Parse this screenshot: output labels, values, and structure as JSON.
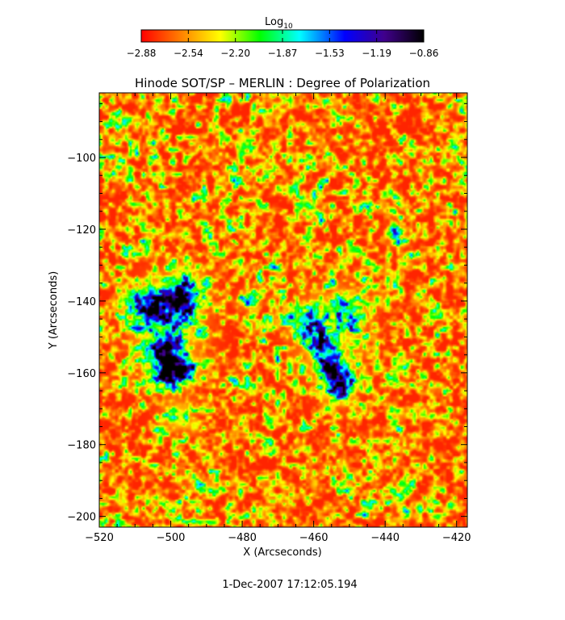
{
  "chart_data": {
    "type": "heatmap",
    "title": "Hinode SOT/SP – MERLIN : Degree of Polarization",
    "xlabel": "X (Arcseconds)",
    "ylabel": "Y (Arcseconds)",
    "xlim": [
      -520,
      -417
    ],
    "ylim": [
      -203,
      -82
    ],
    "x_ticks": [
      -520,
      -500,
      -480,
      -460,
      -440,
      -420
    ],
    "y_ticks": [
      -200,
      -180,
      -160,
      -140,
      -120,
      -100
    ],
    "colorbar": {
      "label_main": "Log",
      "label_sub": "10",
      "range": [
        -2.88,
        -0.86
      ],
      "ticks": [
        "−2.88",
        "−2.54",
        "−2.20",
        "−1.87",
        "−1.53",
        "−1.19",
        "−0.86"
      ],
      "colormap": [
        "#ff0000",
        "#ff8000",
        "#ffff00",
        "#00ff00",
        "#00ffff",
        "#0000ff",
        "#40008c",
        "#000000"
      ]
    },
    "field": {
      "background_level": -2.8,
      "blobs": [
        {
          "x": -500,
          "y": -160,
          "sx": 2.5,
          "sy": 2.5,
          "amp": 1.9
        },
        {
          "x": -502,
          "y": -154,
          "sx": 2.5,
          "sy": 2.0,
          "amp": 1.7
        },
        {
          "x": -496,
          "y": -159,
          "sx": 2.0,
          "sy": 2.0,
          "amp": 1.6
        },
        {
          "x": -505,
          "y": -141,
          "sx": 3.0,
          "sy": 3.0,
          "amp": 1.5
        },
        {
          "x": -497,
          "y": -140,
          "sx": 2.5,
          "sy": 3.0,
          "amp": 1.5
        },
        {
          "x": -501,
          "y": -148,
          "sx": 6.0,
          "sy": 8.0,
          "amp": 0.8
        },
        {
          "x": -496,
          "y": -137,
          "sx": 4.0,
          "sy": 4.0,
          "amp": 0.7
        },
        {
          "x": -498,
          "y": -172,
          "sx": 3.0,
          "sy": 3.0,
          "amp": 0.6
        },
        {
          "x": -453,
          "y": -163,
          "sx": 2.5,
          "sy": 3.0,
          "amp": 2.0
        },
        {
          "x": -456,
          "y": -158,
          "sx": 2.0,
          "sy": 2.0,
          "amp": 1.6
        },
        {
          "x": -458,
          "y": -152,
          "sx": 2.0,
          "sy": 2.0,
          "amp": 1.4
        },
        {
          "x": -462,
          "y": -146,
          "sx": 3.0,
          "sy": 3.0,
          "amp": 0.9
        },
        {
          "x": -450,
          "y": -142,
          "sx": 3.0,
          "sy": 3.0,
          "amp": 0.7
        },
        {
          "x": -455,
          "y": -150,
          "sx": 6.0,
          "sy": 8.0,
          "amp": 0.6
        },
        {
          "x": -478,
          "y": -140,
          "sx": 2.0,
          "sy": 2.0,
          "amp": 0.5
        },
        {
          "x": -437,
          "y": -122,
          "sx": 2.0,
          "sy": 2.0,
          "amp": 0.4
        }
      ]
    }
  },
  "footer": {
    "timestamp": "1-Dec-2007 17:12:05.194"
  }
}
